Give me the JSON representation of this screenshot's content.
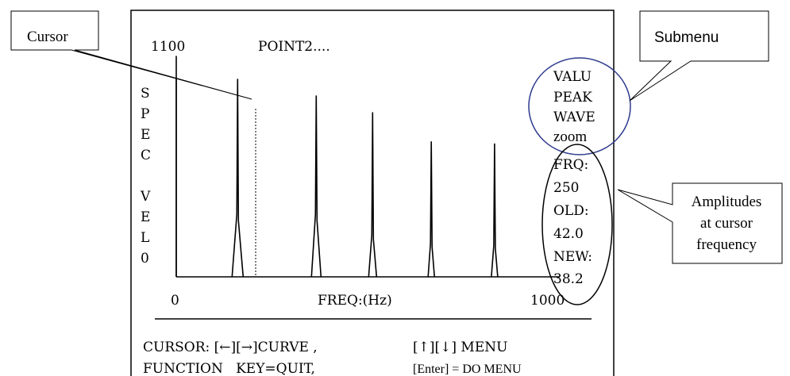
{
  "screen": {
    "scale_max": "1100",
    "point_label": "POINT2....",
    "y_axis_letters": [
      "S",
      "P",
      "E",
      "C",
      "",
      "V",
      "E",
      "L",
      "0"
    ],
    "x_start": "0",
    "x_label": "FREQ:(Hz)",
    "x_end": "1000",
    "submenu_items": [
      "VALU",
      "PEAK",
      "WAVE",
      "zoom"
    ],
    "readouts": [
      "FRQ:",
      "250",
      "OLD:",
      "42.0",
      "NEW:",
      "38.2"
    ],
    "help_line1_left": "CURSOR: [←][→]CURVE ,",
    "help_line1_right": "[↑][↓] MENU",
    "help_line2_left": "FUNCTION   KEY=QUIT,",
    "help_line2_right": "[Enter] = DO MENU"
  },
  "callouts": {
    "cursor": "Cursor",
    "submenu": "Submenu",
    "amplitudes": [
      "Amplitudes",
      "at cursor",
      "frequency"
    ]
  },
  "chart_data": {
    "type": "line",
    "xlabel": "FREQ:(Hz)",
    "ylabel": "SPEC VELO",
    "xlim": [
      0,
      1000
    ],
    "ylim": [
      0,
      1100
    ],
    "cursor_x": 250,
    "series": [
      {
        "values": [
          [
            160,
            250
          ],
          [
            165,
            950
          ],
          [
            355,
            0
          ],
          [
            365,
            650
          ],
          [
            370,
            870
          ],
          [
            510,
            300
          ],
          [
            512,
            790
          ],
          [
            660,
            150
          ],
          [
            665,
            650
          ],
          [
            825,
            150
          ],
          [
            830,
            640
          ]
        ]
      }
    ]
  }
}
